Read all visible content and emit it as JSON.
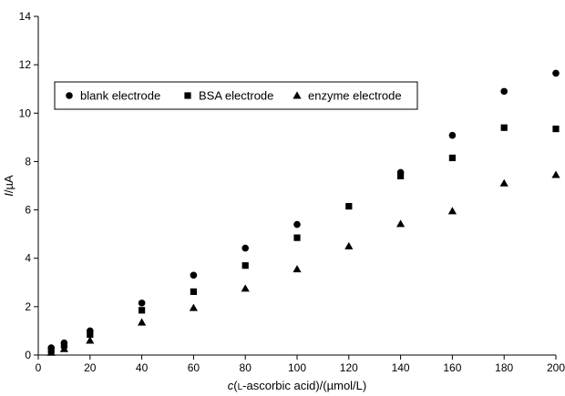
{
  "chart_data": {
    "type": "scatter",
    "xlabel": "c(l-ascorbic acid)/(µmol/L)",
    "ylabel": "I/µA",
    "xlim": [
      0,
      200
    ],
    "ylim": [
      0,
      14
    ],
    "x_ticks": [
      0,
      20,
      40,
      60,
      80,
      100,
      120,
      140,
      160,
      180,
      200
    ],
    "y_ticks": [
      0,
      2,
      4,
      6,
      8,
      10,
      12,
      14
    ],
    "grid": false,
    "legend_position": "top-left",
    "series": [
      {
        "name": "blank electrode",
        "marker": "circle",
        "color": "#000000",
        "points": [
          {
            "x": 5,
            "y": 0.3
          },
          {
            "x": 10,
            "y": 0.5
          },
          {
            "x": 20,
            "y": 1.0
          },
          {
            "x": 40,
            "y": 2.15
          },
          {
            "x": 60,
            "y": 3.3
          },
          {
            "x": 80,
            "y": 4.42
          },
          {
            "x": 100,
            "y": 5.4
          },
          {
            "x": 140,
            "y": 7.55
          },
          {
            "x": 160,
            "y": 9.08
          },
          {
            "x": 180,
            "y": 10.9
          },
          {
            "x": 200,
            "y": 11.65
          }
        ]
      },
      {
        "name": "BSA electrode",
        "marker": "square",
        "color": "#000000",
        "points": [
          {
            "x": 5,
            "y": 0.2
          },
          {
            "x": 10,
            "y": 0.4
          },
          {
            "x": 20,
            "y": 0.85
          },
          {
            "x": 40,
            "y": 1.85
          },
          {
            "x": 60,
            "y": 2.62
          },
          {
            "x": 80,
            "y": 3.7
          },
          {
            "x": 100,
            "y": 4.85
          },
          {
            "x": 120,
            "y": 6.15
          },
          {
            "x": 140,
            "y": 7.4
          },
          {
            "x": 160,
            "y": 8.15
          },
          {
            "x": 180,
            "y": 9.4
          },
          {
            "x": 200,
            "y": 9.35
          }
        ]
      },
      {
        "name": "enzyme electrode",
        "marker": "triangle",
        "color": "#000000",
        "points": [
          {
            "x": 5,
            "y": 0.1
          },
          {
            "x": 10,
            "y": 0.25
          },
          {
            "x": 20,
            "y": 0.6
          },
          {
            "x": 40,
            "y": 1.35
          },
          {
            "x": 60,
            "y": 1.95
          },
          {
            "x": 80,
            "y": 2.75
          },
          {
            "x": 100,
            "y": 3.55
          },
          {
            "x": 120,
            "y": 4.5
          },
          {
            "x": 140,
            "y": 5.42
          },
          {
            "x": 160,
            "y": 5.95
          },
          {
            "x": 180,
            "y": 7.1
          },
          {
            "x": 200,
            "y": 7.45
          }
        ]
      }
    ]
  }
}
